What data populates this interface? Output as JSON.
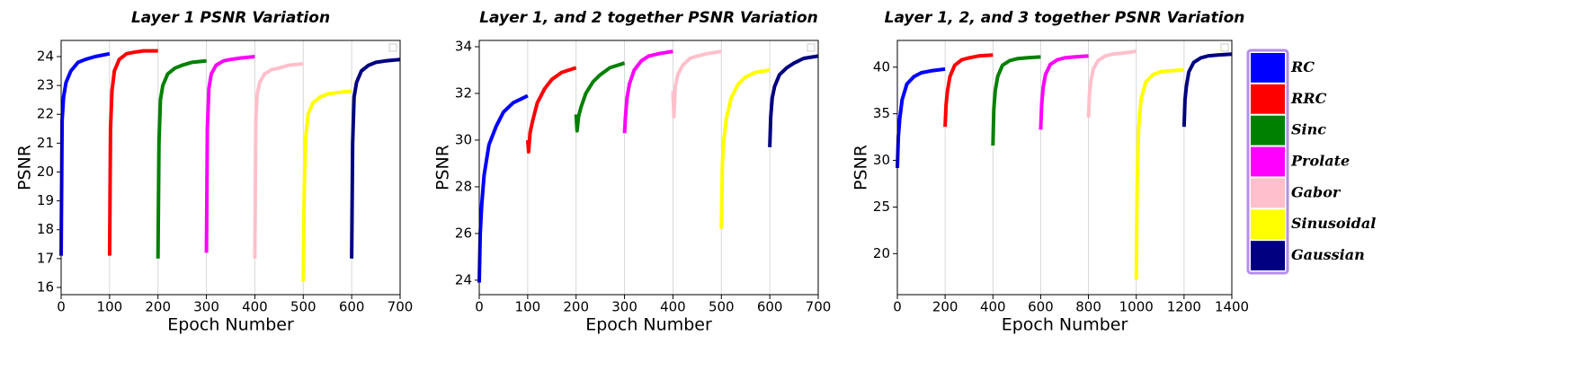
{
  "chart_data": [
    {
      "type": "line",
      "title": "Layer 1 PSNR Variation",
      "x_label": "Epoch Number",
      "y_label": "PSNR",
      "xlim": [
        0,
        700
      ],
      "xticks": [
        0,
        100,
        200,
        300,
        400,
        500,
        600,
        700
      ],
      "ylim": [
        15.75,
        24.56
      ],
      "yticks": [
        16,
        17,
        18,
        19,
        20,
        21,
        22,
        23,
        24
      ],
      "grid": "x",
      "series": [
        {
          "color": "#0000ff",
          "x": [
            0,
            2,
            5,
            10,
            20,
            35,
            50,
            70,
            100
          ],
          "values": [
            17.1,
            21.8,
            22.6,
            23.1,
            23.5,
            23.8,
            23.9,
            24.0,
            24.1
          ]
        },
        {
          "color": "#ff0000",
          "x": [
            100,
            102,
            105,
            110,
            120,
            135,
            150,
            170,
            200
          ],
          "values": [
            17.1,
            21.5,
            22.8,
            23.5,
            23.9,
            24.1,
            24.15,
            24.2,
            24.2
          ]
        },
        {
          "color": "#008000",
          "x": [
            200,
            202,
            205,
            210,
            220,
            235,
            250,
            270,
            300
          ],
          "values": [
            17.0,
            21.0,
            22.5,
            23.0,
            23.4,
            23.6,
            23.7,
            23.8,
            23.85
          ]
        },
        {
          "color": "#ff00ff",
          "x": [
            300,
            302,
            305,
            310,
            320,
            335,
            350,
            370,
            400
          ],
          "values": [
            17.2,
            21.5,
            22.9,
            23.4,
            23.7,
            23.85,
            23.9,
            23.95,
            24.0
          ]
        },
        {
          "color": "#ffc0cb",
          "x": [
            400,
            402,
            405,
            410,
            420,
            435,
            450,
            470,
            500
          ],
          "values": [
            17.0,
            21.8,
            22.7,
            23.1,
            23.4,
            23.55,
            23.6,
            23.7,
            23.75
          ]
        },
        {
          "color": "#ffff00",
          "x": [
            500,
            502,
            505,
            510,
            520,
            535,
            550,
            570,
            600
          ],
          "values": [
            16.2,
            19.5,
            21.2,
            22.0,
            22.4,
            22.6,
            22.7,
            22.75,
            22.8
          ]
        },
        {
          "color": "#000080",
          "x": [
            600,
            602,
            605,
            610,
            620,
            635,
            650,
            670,
            700
          ],
          "values": [
            17.0,
            21.0,
            22.6,
            23.1,
            23.5,
            23.7,
            23.8,
            23.85,
            23.9
          ]
        }
      ]
    },
    {
      "type": "line",
      "title": "Layer 1, and 2 together PSNR Variation",
      "x_label": "Epoch Number",
      "y_label": "PSNR",
      "xlim": [
        0,
        700
      ],
      "xticks": [
        0,
        100,
        200,
        300,
        400,
        500,
        600,
        700
      ],
      "ylim": [
        23.38,
        34.27
      ],
      "yticks": [
        24,
        26,
        28,
        30,
        32,
        34
      ],
      "grid": "x",
      "series": [
        {
          "color": "#0000ff",
          "x": [
            0,
            2,
            5,
            10,
            20,
            35,
            50,
            70,
            100
          ],
          "values": [
            23.9,
            26.0,
            27.2,
            28.5,
            29.8,
            30.6,
            31.2,
            31.6,
            31.9
          ]
        },
        {
          "color": "#ff0000",
          "x": [
            100,
            102,
            105,
            110,
            120,
            135,
            150,
            170,
            200
          ],
          "values": [
            30.0,
            29.5,
            30.3,
            30.8,
            31.6,
            32.2,
            32.6,
            32.9,
            33.1
          ]
        },
        {
          "color": "#008000",
          "x": [
            200,
            202,
            205,
            210,
            220,
            235,
            250,
            270,
            300
          ],
          "values": [
            31.1,
            30.4,
            31.0,
            31.4,
            32.0,
            32.5,
            32.8,
            33.1,
            33.3
          ]
        },
        {
          "color": "#ff00ff",
          "x": [
            300,
            302,
            305,
            310,
            320,
            335,
            350,
            370,
            400
          ],
          "values": [
            30.3,
            31.0,
            31.8,
            32.4,
            33.0,
            33.4,
            33.6,
            33.7,
            33.8
          ]
        },
        {
          "color": "#ffc0cb",
          "x": [
            400,
            402,
            405,
            410,
            420,
            435,
            450,
            470,
            500
          ],
          "values": [
            32.1,
            31.0,
            32.3,
            32.8,
            33.2,
            33.5,
            33.6,
            33.7,
            33.8
          ]
        },
        {
          "color": "#ffff00",
          "x": [
            500,
            502,
            505,
            510,
            520,
            535,
            550,
            570,
            600
          ],
          "values": [
            26.2,
            29.0,
            30.0,
            30.9,
            31.8,
            32.4,
            32.7,
            32.9,
            33.0
          ]
        },
        {
          "color": "#000080",
          "x": [
            600,
            602,
            605,
            610,
            620,
            635,
            650,
            670,
            700
          ],
          "values": [
            29.7,
            31.0,
            31.8,
            32.3,
            32.8,
            33.1,
            33.3,
            33.5,
            33.6
          ]
        }
      ]
    },
    {
      "type": "line",
      "title": "Layer 1, 2, and 3 together PSNR Variation",
      "x_label": "Epoch Number",
      "y_label": "PSNR",
      "xlim": [
        0,
        1400
      ],
      "xticks": [
        0,
        200,
        400,
        600,
        800,
        1000,
        1200,
        1400
      ],
      "ylim": [
        15.6,
        42.87
      ],
      "yticks": [
        20,
        25,
        30,
        35,
        40
      ],
      "grid": "x",
      "series": [
        {
          "name": "RC",
          "color": "#0000ff",
          "x": [
            0,
            4,
            10,
            20,
            40,
            70,
            100,
            140,
            200
          ],
          "values": [
            29.2,
            32.5,
            34.5,
            36.5,
            38.2,
            39.0,
            39.4,
            39.6,
            39.8
          ]
        },
        {
          "name": "RRC",
          "color": "#ff0000",
          "x": [
            200,
            204,
            210,
            220,
            240,
            270,
            300,
            340,
            400
          ],
          "values": [
            33.6,
            36.0,
            37.5,
            39.0,
            40.2,
            40.8,
            41.0,
            41.2,
            41.3
          ]
        },
        {
          "name": "Sinc",
          "color": "#008000",
          "x": [
            400,
            404,
            410,
            420,
            440,
            470,
            500,
            540,
            600
          ],
          "values": [
            31.6,
            35.5,
            37.5,
            39.0,
            40.2,
            40.7,
            40.9,
            41.0,
            41.1
          ]
        },
        {
          "name": "Prolate",
          "color": "#ff00ff",
          "x": [
            600,
            604,
            610,
            620,
            640,
            670,
            700,
            740,
            800
          ],
          "values": [
            33.3,
            36.0,
            37.8,
            39.2,
            40.3,
            40.8,
            41.0,
            41.1,
            41.2
          ]
        },
        {
          "name": "Gabor",
          "color": "#ffc0cb",
          "x": [
            800,
            804,
            810,
            820,
            840,
            870,
            900,
            940,
            1000
          ],
          "values": [
            34.6,
            37.0,
            38.5,
            39.8,
            40.7,
            41.2,
            41.4,
            41.5,
            41.7
          ]
        },
        {
          "name": "Sinusoidal",
          "color": "#ffff00",
          "x": [
            1000,
            1004,
            1010,
            1020,
            1040,
            1070,
            1100,
            1140,
            1200
          ],
          "values": [
            17.2,
            28.0,
            33.5,
            36.5,
            38.4,
            39.2,
            39.5,
            39.6,
            39.7
          ]
        },
        {
          "name": "Gaussian",
          "color": "#000080",
          "x": [
            1200,
            1204,
            1210,
            1220,
            1240,
            1270,
            1300,
            1340,
            1400
          ],
          "values": [
            33.6,
            36.5,
            38.0,
            39.5,
            40.5,
            41.0,
            41.2,
            41.3,
            41.4
          ]
        }
      ]
    }
  ]
}
